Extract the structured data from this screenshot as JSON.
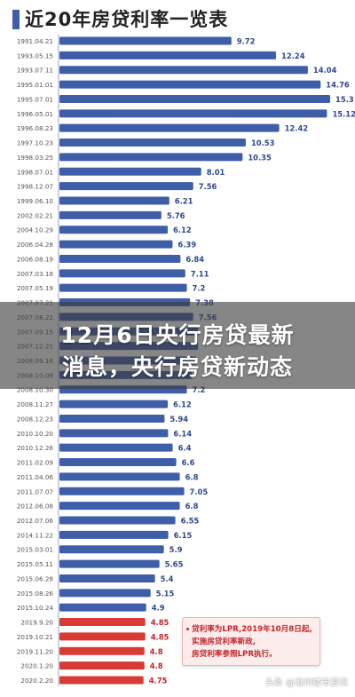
{
  "chart_data": {
    "type": "bar",
    "orientation": "horizontal",
    "title": "近20年房贷利率一览表",
    "categories": [
      "1991.04.21",
      "1993.05.15",
      "1993.07.11",
      "1995.01.01",
      "1995.07.01",
      "1996.05.01",
      "1996.08.23",
      "1997.10.23",
      "1998.03.25",
      "1998.07.01",
      "1998.12.07",
      "1999.06.10",
      "2002.02.21",
      "2004.10.29",
      "2006.04.28",
      "2006.08.19",
      "2007.03.18",
      "2007.05.19",
      "2007.07.21",
      "2007.08.22",
      "2007.09.15",
      "2007.12.21",
      "2008.09.16",
      "2008.10.09",
      "2008.10.30",
      "2008.11.27",
      "2008.12.23",
      "2010.10.20",
      "2010.12.26",
      "2011.02.09",
      "2011.04.06",
      "2011.07.07",
      "2012.06.08",
      "2012.07.06",
      "2014.11.22",
      "2015.03.01",
      "2015.05.11",
      "2015.06.28",
      "2015.08.26",
      "2015.10.24",
      "2019.9.20",
      "2019.10.21",
      "2019.11.20",
      "2020.1.20",
      "2020.2.20"
    ],
    "values": [
      9.72,
      12.24,
      14.04,
      14.76,
      15.3,
      15.12,
      12.42,
      10.53,
      10.35,
      8.01,
      7.56,
      6.21,
      5.76,
      6.12,
      6.39,
      6.84,
      7.11,
      7.2,
      7.38,
      7.56,
      7.83,
      7.83,
      7.74,
      7.47,
      7.2,
      6.12,
      5.94,
      6.14,
      6.4,
      6.6,
      6.8,
      7.05,
      6.8,
      6.55,
      6.15,
      5.9,
      5.65,
      5.4,
      5.15,
      4.9,
      4.85,
      4.85,
      4.8,
      4.8,
      4.75
    ],
    "value_labels": [
      "9.72",
      "12.24",
      "14.04",
      "14.76",
      "15.3",
      "15.12",
      "12.42",
      "10.53",
      "10.35",
      "8.01",
      "7.56",
      "6.21",
      "5.76",
      "6.12",
      "6.39",
      "6.84",
      "7.11",
      "7.2",
      "7.38",
      "7.56",
      "",
      "",
      "",
      "",
      "7.2",
      "6.12",
      "5.94",
      "6.14",
      "6.4",
      "6.6",
      "6.8",
      "7.05",
      "6.8",
      "6.55",
      "6.15",
      "5.9",
      "5.65",
      "5.4",
      "5.15",
      "4.9",
      "4.85",
      "4.85",
      "4.8",
      "4.8",
      "4.75"
    ],
    "bar_colors": [
      "#3f5ea8",
      "#3f5ea8",
      "#3f5ea8",
      "#3f5ea8",
      "#3f5ea8",
      "#3f5ea8",
      "#3f5ea8",
      "#3f5ea8",
      "#3f5ea8",
      "#3f5ea8",
      "#3f5ea8",
      "#3f5ea8",
      "#3f5ea8",
      "#3f5ea8",
      "#3f5ea8",
      "#3f5ea8",
      "#3f5ea8",
      "#3f5ea8",
      "#3f5ea8",
      "#3f5ea8",
      "#3f5ea8",
      "#3f5ea8",
      "#3f5ea8",
      "#3f5ea8",
      "#3f5ea8",
      "#3f5ea8",
      "#3f5ea8",
      "#3f5ea8",
      "#3f5ea8",
      "#3f5ea8",
      "#3f5ea8",
      "#3f5ea8",
      "#3f5ea8",
      "#3f5ea8",
      "#3f5ea8",
      "#3f5ea8",
      "#3f5ea8",
      "#3f5ea8",
      "#3f5ea8",
      "#3f5ea8",
      "#d83a36",
      "#d83a36",
      "#d83a36",
      "#d83a36",
      "#d83a36"
    ],
    "xlim": [
      0,
      16
    ],
    "grid": false,
    "legend": "none"
  },
  "overlay": {
    "line1": "12月6日央行房贷最新",
    "line2": "消息，央行房贷新动态",
    "color": "#3c3c3c"
  },
  "note": {
    "lines": [
      "贷利率为LPR,2019年10月8日起,",
      "实施房贷利率新政,",
      "房贷利率参照LPR执行。"
    ],
    "color": "#c0262a"
  },
  "watermark": "头条 @沧州楼市资讯",
  "colors": {
    "bar": "#3f5ea8",
    "bar_lpr": "#d83a36",
    "title_accent": "#3f5ea8"
  }
}
